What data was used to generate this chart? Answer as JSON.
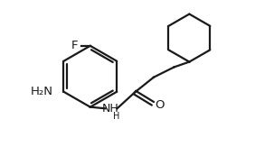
{
  "background_color": "#ffffff",
  "line_color": "#1a1a1a",
  "line_width": 1.6,
  "font_size": 9.5,
  "figsize": [
    3.03,
    1.63
  ],
  "dpi": 100,
  "label_F": "F",
  "label_O": "O",
  "label_NH2": "H₂N",
  "label_NH": "NH",
  "label_H": "H"
}
